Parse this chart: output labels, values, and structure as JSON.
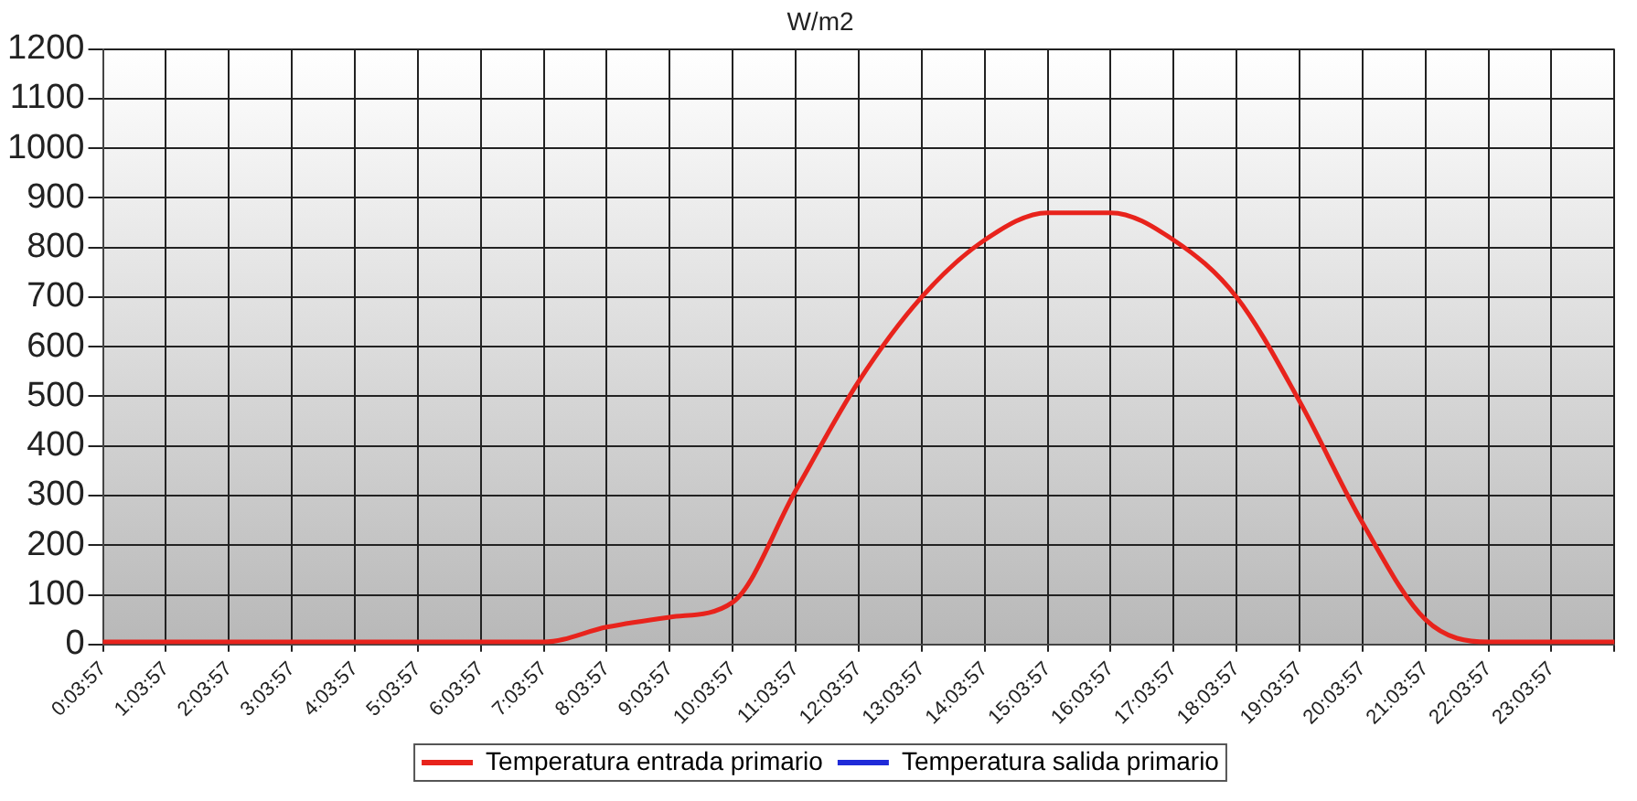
{
  "chart_data": {
    "type": "line",
    "title": "W/m2",
    "categories": [
      "0:03:57",
      "1:03:57",
      "2:03:57",
      "3:03:57",
      "4:03:57",
      "5:03:57",
      "6:03:57",
      "7:03:57",
      "8:03:57",
      "9:03:57",
      "10:03:57",
      "11:03:57",
      "12:03:57",
      "13:03:57",
      "14:03:57",
      "15:03:57",
      "16:03:57",
      "17:03:57",
      "18:03:57",
      "19:03:57",
      "20:03:57",
      "21:03:57",
      "22:03:57",
      "23:03:57",
      null
    ],
    "series": [
      {
        "name": "Temperatura entrada primario",
        "color": "#e8231c",
        "values": [
          5,
          5,
          5,
          5,
          5,
          5,
          5,
          5,
          35,
          55,
          85,
          310,
          530,
          700,
          815,
          870,
          870,
          815,
          700,
          490,
          245,
          50,
          5,
          5,
          5
        ]
      },
      {
        "name": "Temperatura salida primario",
        "color": "#1f2ad8",
        "values": [
          null,
          null,
          null,
          null,
          null,
          null,
          null,
          null,
          null,
          null,
          null,
          null,
          null,
          null,
          null,
          null,
          null,
          null,
          null,
          null,
          null,
          null,
          null,
          null,
          null
        ]
      }
    ],
    "ylim": [
      0,
      1200
    ],
    "yticks": [
      0,
      100,
      200,
      300,
      400,
      500,
      600,
      700,
      800,
      900,
      1000,
      1100,
      1200
    ],
    "grid": true,
    "legend": "bottom",
    "marker": "none",
    "line_style": "solid"
  }
}
